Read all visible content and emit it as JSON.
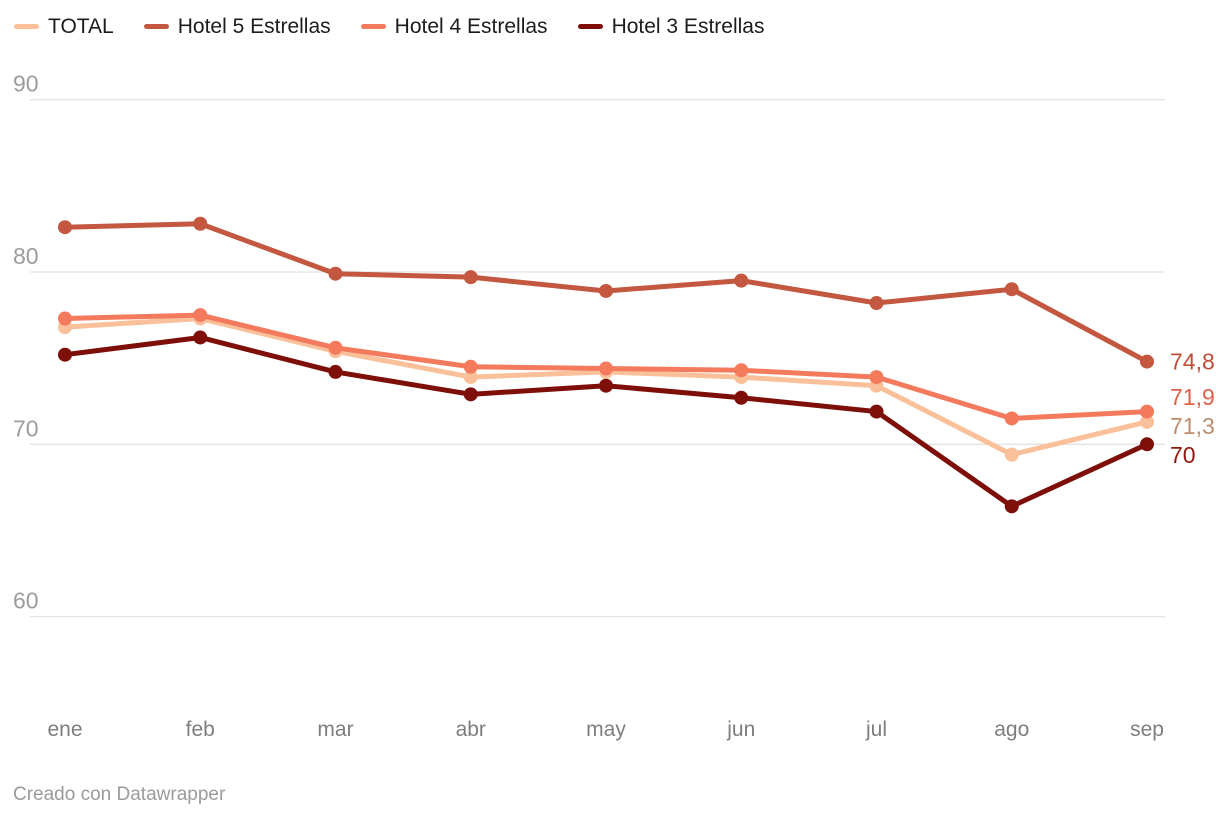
{
  "legend": {
    "items": [
      {
        "label": "TOTAL",
        "color": "#f9c09a"
      },
      {
        "label": "Hotel 5 Estrellas",
        "color": "#c3573f"
      },
      {
        "label": "Hotel 4 Estrellas",
        "color": "#f47a5d"
      },
      {
        "label": "Hotel 3 Estrellas",
        "color": "#7d0f08"
      }
    ]
  },
  "chart_data": {
    "type": "line",
    "x": [
      "ene",
      "feb",
      "mar",
      "abr",
      "may",
      "jun",
      "jul",
      "ago",
      "sep"
    ],
    "series": [
      {
        "name": "TOTAL",
        "color": "#f9c09a",
        "label_color": "#bd8e6d",
        "values": [
          76.8,
          77.3,
          75.4,
          73.9,
          74.2,
          73.9,
          73.4,
          69.4,
          71.3
        ],
        "end_label": "71,3"
      },
      {
        "name": "Hotel 5 Estrellas",
        "color": "#c3573f",
        "label_color": "#c04d36",
        "values": [
          82.6,
          82.8,
          79.9,
          79.7,
          78.9,
          79.5,
          78.2,
          79.0,
          74.8
        ],
        "end_label": "74,8"
      },
      {
        "name": "Hotel 4 Estrellas",
        "color": "#f47a5d",
        "label_color": "#dd6148",
        "values": [
          77.3,
          77.5,
          75.6,
          74.5,
          74.4,
          74.3,
          73.9,
          71.5,
          71.9
        ],
        "end_label": "71,9"
      },
      {
        "name": "Hotel 3 Estrellas",
        "color": "#7d0f08",
        "label_color": "#8f190e",
        "values": [
          75.2,
          76.2,
          74.2,
          72.9,
          73.4,
          72.7,
          71.9,
          66.4,
          70
        ],
        "end_label": "70"
      }
    ],
    "yticks": [
      90,
      80,
      70,
      60
    ],
    "ylim": [
      57,
      92
    ],
    "grid": true,
    "legend_position": "top-left"
  },
  "footer": {
    "credit": "Creado con Datawrapper"
  }
}
